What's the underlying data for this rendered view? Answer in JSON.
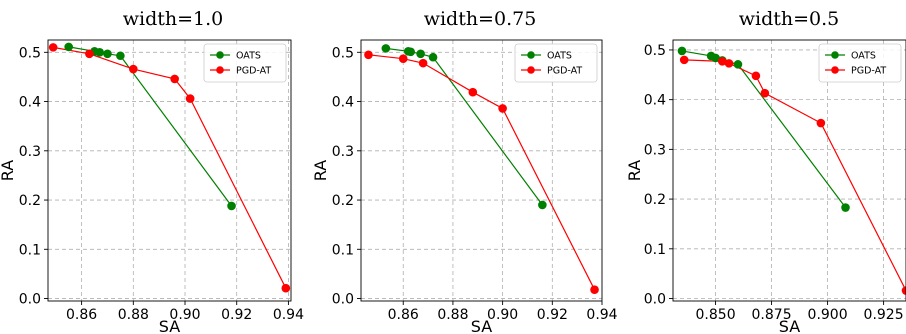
{
  "chart_data": [
    {
      "type": "line",
      "title": "width=1.0",
      "xlabel": "SA",
      "ylabel": "RA",
      "xlim": [
        0.847,
        0.941
      ],
      "ylim": [
        -0.005,
        0.525
      ],
      "xticks": [
        0.86,
        0.88,
        0.9,
        0.92,
        0.94
      ],
      "xtick_labels": [
        "0.86",
        "0.88",
        "0.90",
        "0.92",
        "0.94"
      ],
      "yticks": [
        0.0,
        0.1,
        0.2,
        0.3,
        0.4,
        0.5
      ],
      "ytick_labels": [
        "0.0",
        "0.1",
        "0.2",
        "0.3",
        "0.4",
        "0.5"
      ],
      "grid": true,
      "legend_position": "top-right",
      "series": [
        {
          "name": "OATS",
          "color": "#008000",
          "x": [
            0.855,
            0.865,
            0.867,
            0.87,
            0.875,
            0.918
          ],
          "y": [
            0.511,
            0.502,
            0.5,
            0.497,
            0.493,
            0.188
          ]
        },
        {
          "name": "PGD-AT",
          "color": "#ff0000",
          "x": [
            0.849,
            0.863,
            0.88,
            0.896,
            0.902,
            0.939
          ],
          "y": [
            0.51,
            0.497,
            0.466,
            0.446,
            0.406,
            0.021
          ]
        }
      ]
    },
    {
      "type": "line",
      "title": "width=0.75",
      "xlabel": "SA",
      "ylabel": "RA",
      "xlim": [
        0.843,
        0.94
      ],
      "ylim": [
        -0.005,
        0.525
      ],
      "xticks": [
        0.86,
        0.88,
        0.9,
        0.92,
        0.94
      ],
      "xtick_labels": [
        "0.86",
        "0.88",
        "0.90",
        "0.92",
        "0.94"
      ],
      "yticks": [
        0.0,
        0.1,
        0.2,
        0.3,
        0.4,
        0.5
      ],
      "ytick_labels": [
        "0.0",
        "0.1",
        "0.2",
        "0.3",
        "0.4",
        "0.5"
      ],
      "grid": true,
      "legend_position": "top-right",
      "series": [
        {
          "name": "OATS",
          "color": "#008000",
          "x": [
            0.853,
            0.862,
            0.863,
            0.867,
            0.872,
            0.916
          ],
          "y": [
            0.508,
            0.502,
            0.501,
            0.497,
            0.49,
            0.19
          ]
        },
        {
          "name": "PGD-AT",
          "color": "#ff0000",
          "x": [
            0.846,
            0.86,
            0.868,
            0.888,
            0.9,
            0.937
          ],
          "y": [
            0.495,
            0.487,
            0.478,
            0.419,
            0.386,
            0.018
          ]
        }
      ]
    },
    {
      "type": "line",
      "title": "width=0.5",
      "xlabel": "SA",
      "ylabel": "RA",
      "xlim": [
        0.831,
        0.935
      ],
      "ylim": [
        -0.005,
        0.52
      ],
      "xticks": [
        0.85,
        0.875,
        0.9,
        0.925
      ],
      "xtick_labels": [
        "0.850",
        "0.875",
        "0.900",
        "0.925"
      ],
      "yticks": [
        0.0,
        0.1,
        0.2,
        0.3,
        0.4,
        0.5
      ],
      "ytick_labels": [
        "0.0",
        "0.1",
        "0.2",
        "0.3",
        "0.4",
        "0.5"
      ],
      "grid": true,
      "legend_position": "top-right",
      "series": [
        {
          "name": "OATS",
          "color": "#008000",
          "x": [
            0.835,
            0.848,
            0.85,
            0.853,
            0.86,
            0.908
          ],
          "y": [
            0.498,
            0.488,
            0.484,
            0.479,
            0.471,
            0.183
          ]
        },
        {
          "name": "PGD-AT",
          "color": "#ff0000",
          "x": [
            0.836,
            0.853,
            0.856,
            0.868,
            0.872,
            0.897,
            0.935
          ],
          "y": [
            0.48,
            0.477,
            0.473,
            0.448,
            0.413,
            0.353,
            0.016
          ]
        }
      ]
    }
  ]
}
